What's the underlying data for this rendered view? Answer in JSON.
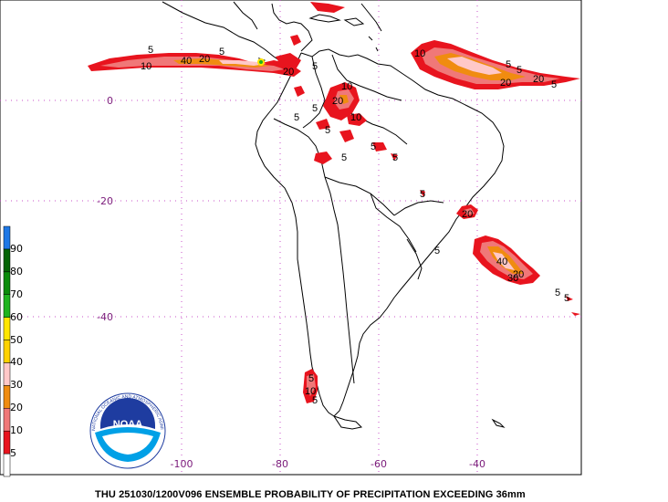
{
  "caption": "THU 251030/1200V096  ENSEMBLE PROBABILITY OF PRECIPITATION EXCEEDING 36mm",
  "x_axis_labels": [
    "-100",
    "-80",
    "-60",
    "-40"
  ],
  "y_axis_labels": [
    "0",
    "-20",
    "-40"
  ],
  "legend": {
    "colors": [
      "#ffffff",
      "#e8141e",
      "#f07878",
      "#f08c10",
      "#ffc8c8",
      "#ffd200",
      "#ffe600",
      "#1eb41e",
      "#0a8c0a",
      "#046404",
      "#1e78e6"
    ],
    "labels": [
      "5",
      "10",
      "20",
      "30",
      "40",
      "50",
      "60",
      "70",
      "80",
      "90"
    ]
  },
  "logo": {
    "text": "NOAA",
    "ring_text": "NATIONAL OCEANIC AND ATMOSPHERIC ADMINISTRATION"
  },
  "contour_labels": {
    "pacific_itcz": [
      "5",
      "10",
      "40",
      "20",
      "5",
      "20"
    ],
    "atlantic_itcz": [
      "10",
      "5",
      "5",
      "20",
      "20",
      "5"
    ],
    "south_atlantic": [
      "40",
      "20",
      "30",
      "5",
      "5"
    ],
    "amazon": [
      "5",
      "10",
      "20",
      "10",
      "5",
      "5",
      "5",
      "5",
      "5",
      "5"
    ],
    "brazil_coast": [
      "20",
      "5",
      "5"
    ],
    "patagonia": [
      "5",
      "10",
      "5"
    ]
  }
}
